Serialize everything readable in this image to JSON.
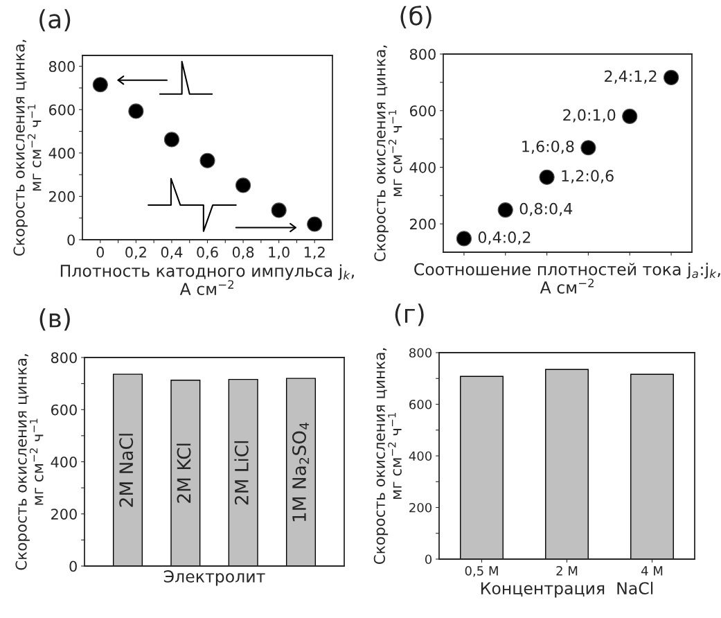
{
  "chart_data": [
    {
      "type": "scatter",
      "title": "(а)",
      "xlabel": "Плотность катодного импульса j$_{k}$,\nA см$^{−2}$",
      "ylabel": "Скорость окисления цинка,\nмг см$^{−2}$ ч$^{−1}$",
      "x": [
        0,
        0.2,
        0.4,
        0.6,
        0.8,
        1.0,
        1.2
      ],
      "series": [
        {
          "color": "#000000",
          "values": [
            715,
            593,
            462,
            365,
            251,
            136,
            72
          ]
        }
      ],
      "xlim": [
        -0.1,
        1.3
      ],
      "xticks": [
        {
          "value": 0,
          "label": "0"
        },
        {
          "value": 0.1,
          "label": null
        },
        {
          "value": 0.2,
          "label": "0,2"
        },
        {
          "value": 0.3,
          "label": null
        },
        {
          "value": 0.4,
          "label": "0,4"
        },
        {
          "value": 0.5,
          "label": null
        },
        {
          "value": 0.6,
          "label": "0,6"
        },
        {
          "value": 0.7,
          "label": null
        },
        {
          "value": 0.8,
          "label": "0,8"
        },
        {
          "value": 0.9,
          "label": null
        },
        {
          "value": 1.0,
          "label": "1,0"
        },
        {
          "value": 1.1,
          "label": null
        },
        {
          "value": 1.2,
          "label": "1,2"
        }
      ],
      "ylim": [
        0,
        850
      ],
      "yticks": [
        0,
        {
          "value": 100,
          "label": null
        },
        200,
        {
          "value": 300,
          "label": null
        },
        400,
        {
          "value": 500,
          "label": null
        },
        600,
        {
          "value": 700,
          "label": null
        },
        800
      ],
      "marker": "circle",
      "grid": false,
      "legend": false
    },
    {
      "type": "scatter",
      "title": "(б)",
      "xlabel": "Соотношение плотностей тока j$_{a}$:j$_{k}$,\nA см$^{−2}$",
      "ylabel": "Скорость окисления цинка,\nмг см$^{−2}$ ч$^{−1}$",
      "categories": [
        null,
        null,
        null,
        null,
        null,
        null
      ],
      "series": [
        {
          "color": "#000000",
          "values": [
            148,
            249,
            365,
            469,
            580,
            717
          ],
          "value_labels": [
            "0,4:0,2",
            "0,8:0,4",
            "1,2:0,6",
            "1,6:0,8",
            "2,0:1,0",
            "2,4:1,2"
          ]
        }
      ],
      "ylim": [
        100,
        800
      ],
      "yticks": [
        200,
        {
          "value": 300,
          "label": null
        },
        400,
        {
          "value": 500,
          "label": null
        },
        600,
        {
          "value": 700,
          "label": null
        },
        800
      ],
      "marker": "circle",
      "grid": false,
      "legend": false
    },
    {
      "type": "bar",
      "title": "(в)",
      "xlabel": "Электролит",
      "ylabel": "Скорость окисления цинка,\nмг см$^{−2}$ ч$^{−1}$",
      "categories": [
        "2M NaCl",
        "2M KCl",
        "2M LiCl",
        "1M Na$_{2}$SO$_{4}$"
      ],
      "series": [
        {
          "color": "#c0c0c0",
          "values": [
            736,
            713,
            716,
            720
          ]
        }
      ],
      "ylim": [
        0,
        800
      ],
      "yticks": [
        0,
        {
          "value": 100,
          "label": null
        },
        200,
        {
          "value": 300,
          "label": null
        },
        400,
        {
          "value": 500,
          "label": null
        },
        600,
        {
          "value": 700,
          "label": null
        },
        800
      ],
      "grid": false,
      "legend": false
    },
    {
      "type": "bar",
      "title": "(г)",
      "xlabel": "Концентрация  NaCl",
      "ylabel": "Скорость окисления цинка,\nмг см$^{−2}$ ч$^{−1}$",
      "categories": [
        "0,5 M",
        "2 M",
        "4 M"
      ],
      "series": [
        {
          "color": "#c0c0c0",
          "values": [
            708,
            735,
            716
          ]
        }
      ],
      "ylim": [
        0,
        800
      ],
      "yticks": [
        0,
        {
          "value": 100,
          "label": null
        },
        200,
        {
          "value": 300,
          "label": null
        },
        400,
        {
          "value": 500,
          "label": null
        },
        600,
        {
          "value": 700,
          "label": null
        },
        800
      ],
      "grid": false,
      "legend": false
    }
  ]
}
